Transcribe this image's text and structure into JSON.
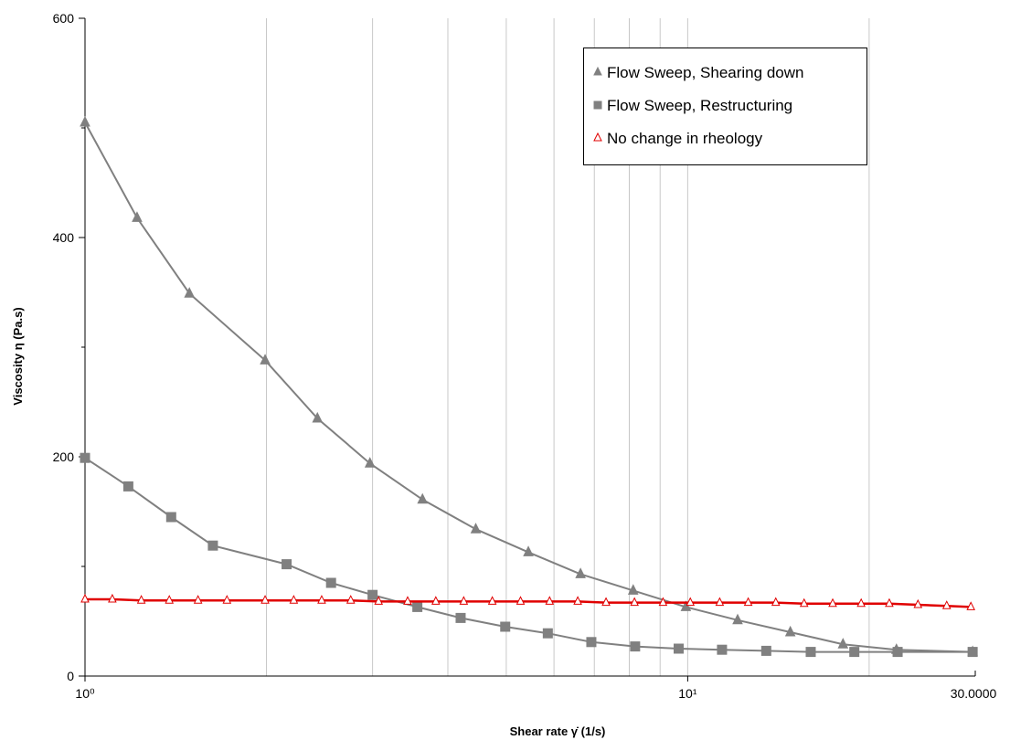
{
  "chart_data": {
    "type": "line",
    "title": "",
    "xlabel": "Shear rate γ̇  (1/s)",
    "ylabel": "Viscosity  η  (Pa.s)",
    "x_scale": "log",
    "xlim": [
      1,
      30
    ],
    "ylim": [
      0,
      600
    ],
    "grid": {
      "x": true,
      "y": false
    },
    "legend_position": "top-right",
    "x_tick_labels": [
      {
        "value": 1,
        "label": "10⁰"
      },
      {
        "value": 10,
        "label": "10¹"
      },
      {
        "value": 30,
        "label": "30.0000"
      }
    ],
    "y_ticks": [
      0,
      200,
      400,
      600
    ],
    "series": [
      {
        "name": "Flow Sweep, Shearing down",
        "marker": "triangle-filled",
        "color": "#808080",
        "line_color": "#808080",
        "x": [
          1.0,
          1.22,
          1.49,
          1.99,
          2.43,
          2.97,
          3.63,
          4.45,
          5.44,
          6.64,
          8.12,
          9.93,
          12.1,
          14.8,
          18.1,
          22.2,
          29.7
        ],
        "y": [
          505,
          418,
          349,
          288,
          235,
          194,
          161,
          134,
          113,
          93,
          78,
          63,
          51,
          40,
          29,
          24,
          22
        ]
      },
      {
        "name": "Flow Sweep, Restructuring",
        "marker": "square-filled",
        "color": "#808080",
        "line_color": "#808080",
        "x": [
          1.0,
          1.18,
          1.39,
          1.63,
          2.16,
          2.56,
          3.0,
          3.56,
          4.2,
          4.98,
          5.86,
          6.92,
          8.18,
          9.66,
          11.4,
          13.5,
          16.0,
          18.9,
          22.3,
          29.7
        ],
        "y": [
          199,
          173,
          145,
          119,
          102,
          85,
          74,
          63,
          53,
          45,
          39,
          31,
          27,
          25,
          24,
          23,
          22,
          22,
          22,
          22
        ]
      },
      {
        "name": "No change in rheology",
        "marker": "triangle-open",
        "color": "#e00000",
        "line_color": "#e00000",
        "x": [
          1.0,
          1.11,
          1.24,
          1.38,
          1.54,
          1.72,
          1.99,
          2.22,
          2.47,
          2.76,
          3.07,
          3.43,
          3.82,
          4.25,
          4.74,
          5.28,
          5.9,
          6.57,
          7.32,
          8.16,
          9.1,
          10.1,
          11.3,
          12.6,
          14.0,
          15.6,
          17.4,
          19.4,
          21.6,
          24.1,
          26.9,
          29.5
        ],
        "y": [
          70,
          70,
          69,
          69,
          69,
          69,
          69,
          69,
          69,
          69,
          68,
          68,
          68,
          68,
          68,
          68,
          68,
          68,
          67,
          67,
          67,
          67,
          67,
          67,
          67,
          66,
          66,
          66,
          66,
          65,
          64,
          63
        ]
      }
    ]
  }
}
